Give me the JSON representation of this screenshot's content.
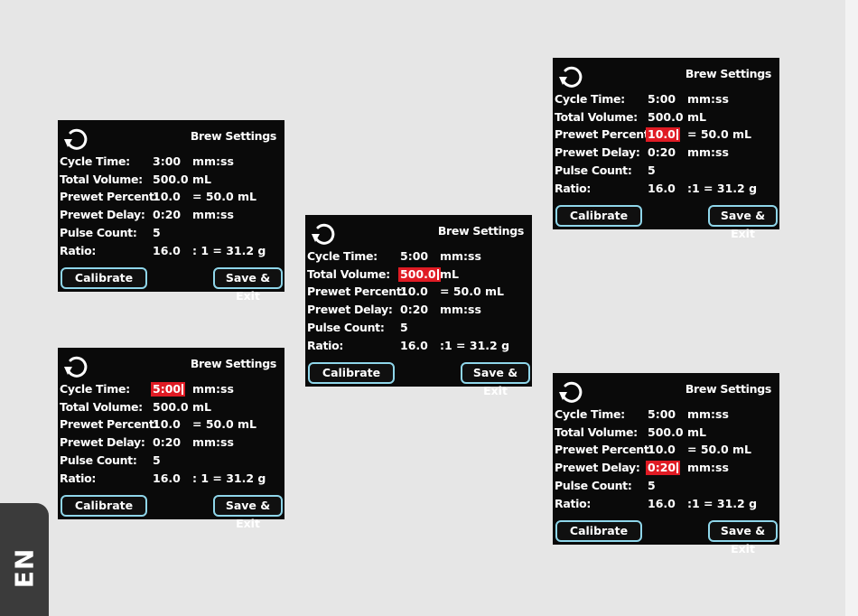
{
  "language_tab": "EN",
  "screens": [
    {
      "title": "Brew Settings",
      "rows": [
        {
          "label": "Cycle Time:",
          "value": "3:00",
          "unit": "mm:ss",
          "selected": false
        },
        {
          "label": "Total Volume:",
          "value": "500.0",
          "unit": "mL",
          "selected": false
        },
        {
          "label": "Prewet Percent:",
          "value": "10.0",
          "unit": "= 50.0 mL",
          "selected": false
        },
        {
          "label": "Prewet Delay:",
          "value": "0:20",
          "unit": "mm:ss",
          "selected": false
        },
        {
          "label": "Pulse Count:",
          "value": "5",
          "unit": "",
          "selected": false
        },
        {
          "label": "Ratio:",
          "value": "16.0",
          "unit": ": 1 = 31.2 g",
          "selected": false
        }
      ],
      "calibrate_label": "Calibrate",
      "save_label": "Save & Exit"
    },
    {
      "title": "Brew Settings",
      "rows": [
        {
          "label": "Cycle Time:",
          "value": "5:00",
          "unit": "mm:ss",
          "selected": true
        },
        {
          "label": "Total Volume:",
          "value": "500.0",
          "unit": "mL",
          "selected": false
        },
        {
          "label": "Prewet Percent:",
          "value": "10.0",
          "unit": "= 50.0 mL",
          "selected": false
        },
        {
          "label": "Prewet Delay:",
          "value": "0:20",
          "unit": "mm:ss",
          "selected": false
        },
        {
          "label": "Pulse Count:",
          "value": "5",
          "unit": "",
          "selected": false
        },
        {
          "label": "Ratio:",
          "value": "16.0",
          "unit": ": 1 = 31.2 g",
          "selected": false
        }
      ],
      "calibrate_label": "Calibrate",
      "save_label": "Save & Exit"
    },
    {
      "title": "Brew Settings",
      "rows": [
        {
          "label": "Cycle Time:",
          "value": "5:00",
          "unit": "mm:ss",
          "selected": false
        },
        {
          "label": "Total Volume:",
          "value": "500.0",
          "unit": "mL",
          "selected": true
        },
        {
          "label": "Prewet Percent:",
          "value": "10.0",
          "unit": "= 50.0 mL",
          "selected": false
        },
        {
          "label": "Prewet Delay:",
          "value": "0:20",
          "unit": "mm:ss",
          "selected": false
        },
        {
          "label": "Pulse Count:",
          "value": "5",
          "unit": "",
          "selected": false
        },
        {
          "label": "Ratio:",
          "value": "16.0",
          "unit": ":1 = 31.2 g",
          "selected": false
        }
      ],
      "calibrate_label": "Calibrate",
      "save_label": "Save & Exit"
    },
    {
      "title": "Brew Settings",
      "rows": [
        {
          "label": "Cycle Time:",
          "value": "5:00",
          "unit": "mm:ss",
          "selected": false
        },
        {
          "label": "Total Volume:",
          "value": "500.0",
          "unit": "mL",
          "selected": false
        },
        {
          "label": "Prewet Percent:",
          "value": "10.0",
          "unit": "= 50.0 mL",
          "selected": true
        },
        {
          "label": "Prewet Delay:",
          "value": "0:20",
          "unit": "mm:ss",
          "selected": false
        },
        {
          "label": "Pulse Count:",
          "value": "5",
          "unit": "",
          "selected": false
        },
        {
          "label": "Ratio:",
          "value": "16.0",
          "unit": ":1 = 31.2 g",
          "selected": false
        }
      ],
      "calibrate_label": "Calibrate",
      "save_label": "Save & Exit"
    },
    {
      "title": "Brew Settings",
      "rows": [
        {
          "label": "Cycle Time:",
          "value": "5:00",
          "unit": "mm:ss",
          "selected": false
        },
        {
          "label": "Total Volume:",
          "value": "500.0",
          "unit": "mL",
          "selected": false
        },
        {
          "label": "Prewet Percent:",
          "value": "10.0",
          "unit": "= 50.0 mL",
          "selected": false
        },
        {
          "label": "Prewet Delay:",
          "value": "0:20",
          "unit": "mm:ss",
          "selected": true
        },
        {
          "label": "Pulse Count:",
          "value": "5",
          "unit": "",
          "selected": false
        },
        {
          "label": "Ratio:",
          "value": "16.0",
          "unit": ":1 = 31.2 g",
          "selected": false
        }
      ],
      "calibrate_label": "Calibrate",
      "save_label": "Save & Exit"
    }
  ]
}
